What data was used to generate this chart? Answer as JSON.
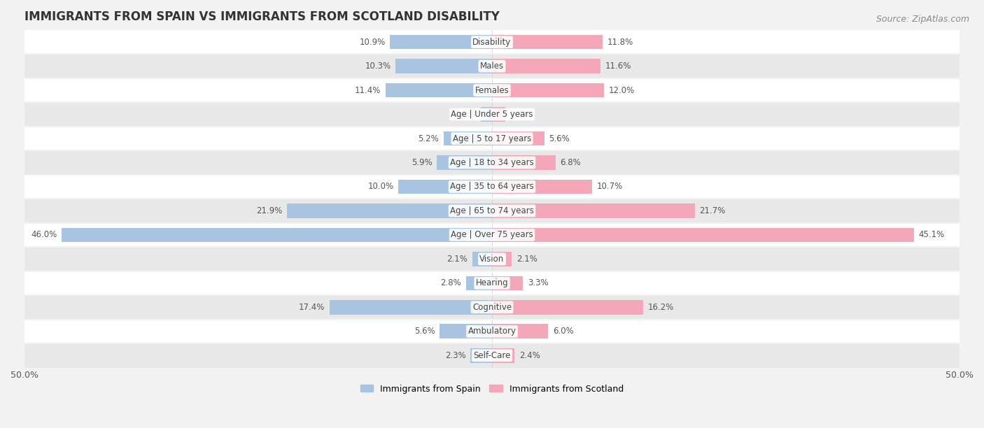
{
  "title": "IMMIGRANTS FROM SPAIN VS IMMIGRANTS FROM SCOTLAND DISABILITY",
  "source": "Source: ZipAtlas.com",
  "categories": [
    "Disability",
    "Males",
    "Females",
    "Age | Under 5 years",
    "Age | 5 to 17 years",
    "Age | 18 to 34 years",
    "Age | 35 to 64 years",
    "Age | 65 to 74 years",
    "Age | Over 75 years",
    "Vision",
    "Hearing",
    "Cognitive",
    "Ambulatory",
    "Self-Care"
  ],
  "spain_values": [
    10.9,
    10.3,
    11.4,
    1.2,
    5.2,
    5.9,
    10.0,
    21.9,
    46.0,
    2.1,
    2.8,
    17.4,
    5.6,
    2.3
  ],
  "scotland_values": [
    11.8,
    11.6,
    12.0,
    1.4,
    5.6,
    6.8,
    10.7,
    21.7,
    45.1,
    2.1,
    3.3,
    16.2,
    6.0,
    2.4
  ],
  "spain_color": "#a8c4e0",
  "scotland_color": "#f4a7b9",
  "spain_label": "Immigrants from Spain",
  "scotland_label": "Immigrants from Scotland",
  "axis_limit": 50.0,
  "background_color": "#f2f2f2",
  "row_color_light": "#ffffff",
  "row_color_dark": "#e8e8e8",
  "bar_height": 0.6,
  "title_fontsize": 12,
  "value_fontsize": 8.5,
  "category_fontsize": 8.5,
  "legend_fontsize": 9,
  "source_fontsize": 9
}
